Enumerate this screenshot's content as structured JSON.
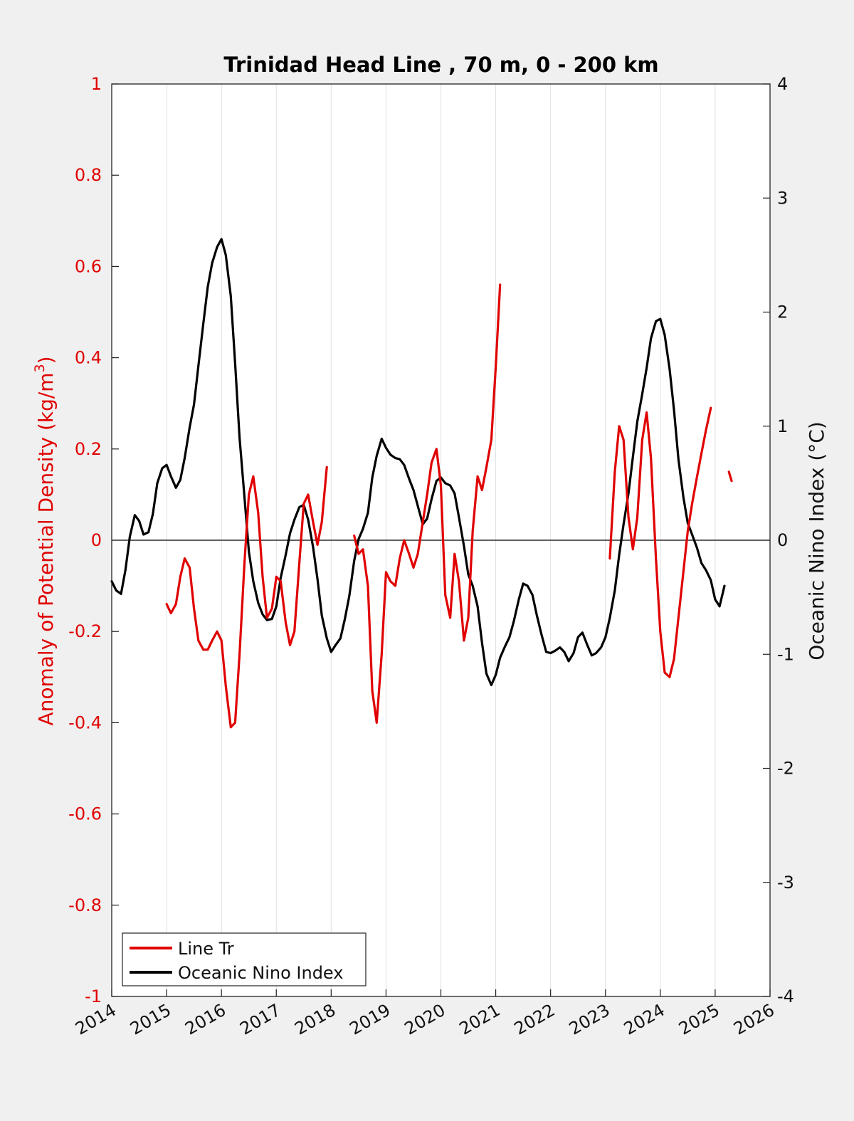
{
  "chart_data": {
    "type": "line",
    "title": "Trinidad Head Line , 70 m, 0 - 200 km",
    "ylabel_left": "Anomaly of Potential Density (kg/m",
    "ylabel_left_sup": "3",
    "ylabel_left_close": ")",
    "ylabel_right": "Oceanic Nino Index (°C)",
    "xlim": [
      2014,
      2026
    ],
    "ylim_left": [
      -1,
      1
    ],
    "ylim_right": [
      -4,
      4
    ],
    "x_ticks": [
      "2014",
      "2015",
      "2016",
      "2017",
      "2018",
      "2019",
      "2020",
      "2021",
      "2022",
      "2023",
      "2024",
      "2025",
      "2026"
    ],
    "y_ticks_left": [
      "-1",
      "-0.8",
      "-0.6",
      "-0.4",
      "-0.2",
      "0",
      "0.2",
      "0.4",
      "0.6",
      "0.8",
      "1"
    ],
    "y_ticks_right": [
      "-4",
      "-3",
      "-2",
      "-1",
      "0",
      "1",
      "2",
      "3",
      "4"
    ],
    "grid_x": true,
    "legend": {
      "placement": "bottom-left",
      "entries": [
        "Line Tr",
        "Oceanic Nino Index"
      ]
    },
    "colors": {
      "line_tr": "#e00000",
      "oni": "#000000",
      "axes": "#222222",
      "grid": "#e0e0e0"
    },
    "series": [
      {
        "name": "Line Tr",
        "axis": "left",
        "segments": [
          [
            [
              2015.0,
              -0.14
            ],
            [
              2015.08,
              -0.16
            ],
            [
              2015.17,
              -0.14
            ],
            [
              2015.25,
              -0.08
            ],
            [
              2015.33,
              -0.04
            ],
            [
              2015.42,
              -0.06
            ],
            [
              2015.5,
              -0.15
            ],
            [
              2015.58,
              -0.22
            ],
            [
              2015.67,
              -0.24
            ],
            [
              2015.75,
              -0.24
            ],
            [
              2015.83,
              -0.22
            ],
            [
              2015.92,
              -0.2
            ],
            [
              2016.0,
              -0.22
            ],
            [
              2016.08,
              -0.32
            ],
            [
              2016.17,
              -0.41
            ],
            [
              2016.25,
              -0.4
            ],
            [
              2016.33,
              -0.25
            ],
            [
              2016.42,
              -0.05
            ],
            [
              2016.5,
              0.1
            ],
            [
              2016.58,
              0.14
            ],
            [
              2016.67,
              0.06
            ],
            [
              2016.75,
              -0.08
            ],
            [
              2016.83,
              -0.17
            ],
            [
              2016.92,
              -0.15
            ],
            [
              2017.0,
              -0.08
            ],
            [
              2017.08,
              -0.09
            ],
            [
              2017.17,
              -0.18
            ],
            [
              2017.25,
              -0.23
            ],
            [
              2017.33,
              -0.2
            ],
            [
              2017.42,
              -0.05
            ],
            [
              2017.5,
              0.08
            ],
            [
              2017.58,
              0.1
            ],
            [
              2017.67,
              0.04
            ],
            [
              2017.75,
              -0.01
            ],
            [
              2017.83,
              0.04
            ],
            [
              2017.92,
              0.16
            ]
          ],
          [
            [
              2018.42,
              0.01
            ],
            [
              2018.5,
              -0.03
            ],
            [
              2018.58,
              -0.02
            ],
            [
              2018.67,
              -0.1
            ],
            [
              2018.75,
              -0.33
            ],
            [
              2018.83,
              -0.4
            ],
            [
              2018.92,
              -0.25
            ],
            [
              2019.0,
              -0.07
            ],
            [
              2019.08,
              -0.09
            ],
            [
              2019.17,
              -0.1
            ],
            [
              2019.25,
              -0.04
            ],
            [
              2019.33,
              0.0
            ],
            [
              2019.42,
              -0.03
            ],
            [
              2019.5,
              -0.06
            ],
            [
              2019.58,
              -0.03
            ],
            [
              2019.67,
              0.04
            ],
            [
              2019.75,
              0.1
            ],
            [
              2019.83,
              0.17
            ],
            [
              2019.92,
              0.2
            ],
            [
              2020.0,
              0.12
            ],
            [
              2020.08,
              -0.12
            ],
            [
              2020.17,
              -0.17
            ],
            [
              2020.25,
              -0.03
            ],
            [
              2020.33,
              -0.09
            ],
            [
              2020.42,
              -0.22
            ],
            [
              2020.5,
              -0.17
            ],
            [
              2020.58,
              0.02
            ],
            [
              2020.67,
              0.14
            ],
            [
              2020.75,
              0.11
            ],
            [
              2020.83,
              0.16
            ],
            [
              2020.92,
              0.22
            ],
            [
              2021.0,
              0.38
            ],
            [
              2021.08,
              0.56
            ]
          ]
        ]
      },
      {
        "name": "Oceanic Nino Index",
        "axis": "right",
        "segments": [
          [
            [
              2014.0,
              -0.36
            ],
            [
              2014.08,
              -0.44
            ],
            [
              2014.17,
              -0.47
            ],
            [
              2014.25,
              -0.26
            ],
            [
              2014.33,
              0.03
            ],
            [
              2014.42,
              0.22
            ],
            [
              2014.5,
              0.17
            ],
            [
              2014.58,
              0.05
            ],
            [
              2014.67,
              0.07
            ],
            [
              2014.75,
              0.23
            ],
            [
              2014.83,
              0.5
            ],
            [
              2014.92,
              0.63
            ],
            [
              2015.0,
              0.66
            ],
            [
              2015.08,
              0.56
            ],
            [
              2015.17,
              0.46
            ],
            [
              2015.25,
              0.53
            ],
            [
              2015.33,
              0.72
            ],
            [
              2015.42,
              0.99
            ],
            [
              2015.5,
              1.19
            ],
            [
              2015.58,
              1.53
            ],
            [
              2015.67,
              1.9
            ],
            [
              2015.75,
              2.22
            ],
            [
              2015.83,
              2.43
            ],
            [
              2015.92,
              2.57
            ],
            [
              2016.0,
              2.64
            ],
            [
              2016.08,
              2.5
            ],
            [
              2016.17,
              2.14
            ],
            [
              2016.25,
              1.55
            ],
            [
              2016.33,
              0.9
            ],
            [
              2016.42,
              0.38
            ],
            [
              2016.5,
              -0.1
            ],
            [
              2016.58,
              -0.36
            ],
            [
              2016.67,
              -0.55
            ],
            [
              2016.75,
              -0.65
            ],
            [
              2016.83,
              -0.7
            ],
            [
              2016.92,
              -0.69
            ],
            [
              2017.0,
              -0.58
            ],
            [
              2017.08,
              -0.33
            ],
            [
              2017.17,
              -0.13
            ],
            [
              2017.25,
              0.06
            ],
            [
              2017.33,
              0.18
            ],
            [
              2017.42,
              0.29
            ],
            [
              2017.5,
              0.31
            ],
            [
              2017.58,
              0.18
            ],
            [
              2017.67,
              -0.06
            ],
            [
              2017.75,
              -0.34
            ],
            [
              2017.83,
              -0.66
            ],
            [
              2017.92,
              -0.86
            ],
            [
              2018.0,
              -0.98
            ],
            [
              2018.08,
              -0.92
            ],
            [
              2018.17,
              -0.86
            ],
            [
              2018.25,
              -0.69
            ],
            [
              2018.33,
              -0.49
            ],
            [
              2018.42,
              -0.18
            ],
            [
              2018.5,
              0.01
            ],
            [
              2018.58,
              0.1
            ],
            [
              2018.67,
              0.24
            ],
            [
              2018.75,
              0.55
            ],
            [
              2018.83,
              0.74
            ],
            [
              2018.92,
              0.89
            ],
            [
              2019.0,
              0.81
            ],
            [
              2019.08,
              0.75
            ],
            [
              2019.17,
              0.72
            ],
            [
              2019.25,
              0.71
            ],
            [
              2019.33,
              0.66
            ],
            [
              2019.42,
              0.54
            ],
            [
              2019.5,
              0.44
            ],
            [
              2019.58,
              0.3
            ],
            [
              2019.67,
              0.14
            ],
            [
              2019.75,
              0.19
            ],
            [
              2019.83,
              0.36
            ],
            [
              2019.92,
              0.52
            ],
            [
              2020.0,
              0.55
            ],
            [
              2020.08,
              0.5
            ],
            [
              2020.17,
              0.48
            ],
            [
              2020.25,
              0.41
            ],
            [
              2020.33,
              0.2
            ],
            [
              2020.42,
              -0.05
            ],
            [
              2020.5,
              -0.3
            ],
            [
              2020.58,
              -0.4
            ],
            [
              2020.67,
              -0.58
            ],
            [
              2020.75,
              -0.9
            ],
            [
              2020.83,
              -1.17
            ],
            [
              2020.92,
              -1.27
            ],
            [
              2021.0,
              -1.18
            ],
            [
              2021.08,
              -1.03
            ],
            [
              2021.17,
              -0.93
            ],
            [
              2021.25,
              -0.85
            ],
            [
              2021.33,
              -0.71
            ],
            [
              2021.42,
              -0.52
            ],
            [
              2021.5,
              -0.38
            ],
            [
              2021.58,
              -0.4
            ],
            [
              2021.67,
              -0.48
            ],
            [
              2021.75,
              -0.66
            ],
            [
              2021.83,
              -0.82
            ],
            [
              2021.92,
              -0.98
            ],
            [
              2022.0,
              -0.99
            ],
            [
              2022.08,
              -0.97
            ],
            [
              2022.17,
              -0.94
            ],
            [
              2022.25,
              -0.98
            ],
            [
              2022.33,
              -1.06
            ],
            [
              2022.42,
              -0.99
            ],
            [
              2022.5,
              -0.85
            ],
            [
              2022.58,
              -0.81
            ],
            [
              2022.67,
              -0.92
            ],
            [
              2022.75,
              -1.01
            ],
            [
              2022.83,
              -0.99
            ],
            [
              2022.92,
              -0.94
            ],
            [
              2023.0,
              -0.85
            ],
            [
              2023.08,
              -0.68
            ],
            [
              2023.17,
              -0.44
            ],
            [
              2023.25,
              -0.13
            ],
            [
              2023.33,
              0.14
            ],
            [
              2023.42,
              0.41
            ],
            [
              2023.5,
              0.73
            ],
            [
              2023.58,
              1.04
            ],
            [
              2023.67,
              1.28
            ],
            [
              2023.75,
              1.51
            ],
            [
              2023.83,
              1.77
            ],
            [
              2023.92,
              1.92
            ],
            [
              2024.0,
              1.94
            ],
            [
              2024.08,
              1.8
            ],
            [
              2024.17,
              1.5
            ],
            [
              2024.25,
              1.14
            ],
            [
              2024.33,
              0.71
            ],
            [
              2024.42,
              0.38
            ],
            [
              2024.5,
              0.15
            ],
            [
              2024.58,
              0.05
            ],
            [
              2024.67,
              -0.07
            ],
            [
              2024.75,
              -0.2
            ],
            [
              2024.83,
              -0.26
            ],
            [
              2024.92,
              -0.35
            ],
            [
              2025.0,
              -0.52
            ],
            [
              2025.08,
              -0.58
            ],
            [
              2025.17,
              -0.4
            ]
          ]
        ]
      }
    ],
    "extra_marks": {
      "line_tr_segments": [
        [
          [
            2023.08,
            -0.04
          ],
          [
            2023.17,
            0.15
          ],
          [
            2023.25,
            0.25
          ],
          [
            2023.33,
            0.22
          ],
          [
            2023.42,
            0.05
          ],
          [
            2023.5,
            -0.02
          ],
          [
            2023.58,
            0.05
          ],
          [
            2023.67,
            0.22
          ],
          [
            2023.75,
            0.28
          ],
          [
            2023.83,
            0.18
          ],
          [
            2023.92,
            -0.04
          ],
          [
            2024.0,
            -0.2
          ],
          [
            2024.08,
            -0.29
          ],
          [
            2024.17,
            -0.3
          ],
          [
            2024.25,
            -0.26
          ],
          [
            2024.33,
            -0.17
          ],
          [
            2024.42,
            -0.07
          ],
          [
            2024.5,
            0.02
          ],
          [
            2024.58,
            0.08
          ],
          [
            2024.67,
            0.14
          ],
          [
            2024.75,
            0.19
          ],
          [
            2024.83,
            0.24
          ],
          [
            2024.92,
            0.29
          ]
        ],
        [
          [
            2025.25,
            0.15
          ],
          [
            2025.3,
            0.13
          ]
        ]
      ]
    }
  }
}
